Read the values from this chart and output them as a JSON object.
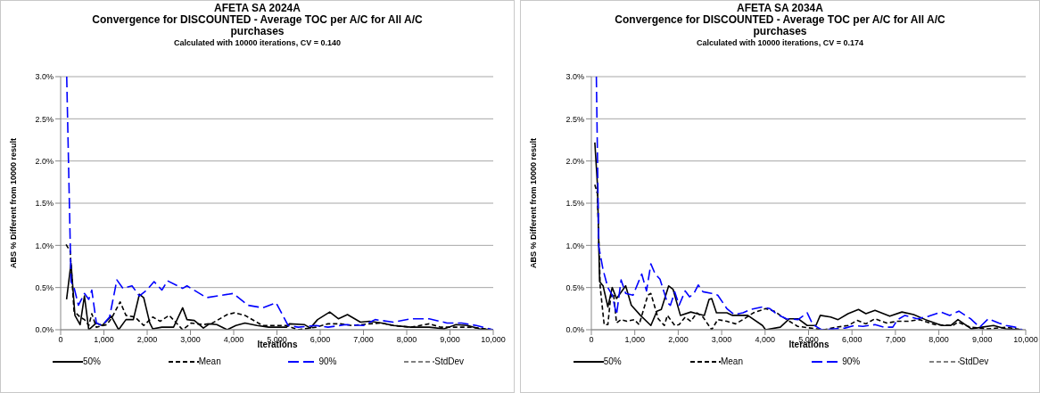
{
  "chart_data": [
    {
      "type": "line",
      "title": "AFETA SA 2024A\nConvergence for DISCOUNTED - Average TOC per A/C for All A/C\npurchases",
      "subtitle": "Calculated with 10000 iterations, CV = 0.140",
      "xlabel": "Iterations",
      "ylabel": "ABS % Different from 10000 result",
      "xlim": [
        0,
        10000
      ],
      "ylim": [
        0,
        3
      ],
      "xticks": [
        0,
        {
          "value": 1000,
          "label": "1,000"
        },
        {
          "value": 2000,
          "label": "2,000"
        },
        {
          "value": 3000,
          "label": "3,000"
        },
        {
          "value": 4000,
          "label": "4,000"
        },
        {
          "value": 5000,
          "label": "5,000"
        },
        {
          "value": 6000,
          "label": "6,000"
        },
        {
          "value": 7000,
          "label": "7,000"
        },
        {
          "value": 8000,
          "label": "8,000"
        },
        {
          "value": 9000,
          "label": "9,000"
        },
        {
          "value": 10000,
          "label": "10,000"
        }
      ],
      "yticks": [
        {
          "value": 0,
          "label": "0.0%"
        },
        {
          "value": 0.5,
          "label": "0.5%"
        },
        {
          "value": 1,
          "label": "1.0%"
        },
        {
          "value": 1.5,
          "label": "1.5%"
        },
        {
          "value": 2,
          "label": "2.0%"
        },
        {
          "value": 2.5,
          "label": "2.5%"
        },
        {
          "value": 3,
          "label": "3.0%"
        }
      ],
      "grid": "y",
      "legend": "bottom",
      "marker": "none",
      "series": [
        {
          "name": "50%",
          "color": "#000000",
          "line_style": "solid",
          "x": [
            137,
            240,
            330,
            450,
            550,
            650,
            825,
            960,
            1170,
            1340,
            1510,
            1680,
            1820,
            1920,
            2060,
            2130,
            2340,
            2610,
            2820,
            2920,
            3090,
            3300,
            3440,
            3610,
            3850,
            4050,
            4260,
            4540,
            4810,
            5220,
            5290,
            5640,
            5770,
            5940,
            6220,
            6420,
            6630,
            6930,
            7140,
            7420,
            7690,
            8100,
            8520,
            8860,
            9140,
            9410,
            9680,
            10000
          ],
          "values": [
            0.36,
            0.79,
            0.17,
            0.06,
            0.4,
            0,
            0.08,
            0.05,
            0.16,
            0,
            0.12,
            0.12,
            0.42,
            0.38,
            0.08,
            0.01,
            0.03,
            0.03,
            0.26,
            0.12,
            0.11,
            0.02,
            0.07,
            0.06,
            0,
            0.05,
            0.08,
            0.05,
            0.03,
            0.03,
            0.07,
            0.06,
            0.02,
            0.12,
            0.21,
            0.13,
            0.18,
            0.09,
            0.1,
            0.08,
            0.05,
            0.03,
            0.03,
            0.01,
            0.06,
            0.05,
            0.01,
            0
          ]
        },
        {
          "name": "Mean",
          "color": "#000000",
          "line_style": "dashed",
          "x": [
            125,
            220,
            310,
            450,
            550,
            650,
            720,
            825,
            1065,
            1170,
            1375,
            1510,
            1720,
            1920,
            2130,
            2300,
            2510,
            2820,
            3020,
            3300,
            3510,
            3850,
            4020,
            4260,
            4670,
            5010,
            5220,
            5490,
            5900,
            6180,
            6460,
            6730,
            7140,
            7420,
            7690,
            8100,
            8520,
            8790,
            9070,
            9480,
            10000
          ],
          "values": [
            1.01,
            0.93,
            0.22,
            0.15,
            0.12,
            0.05,
            0.19,
            0.03,
            0.06,
            0.13,
            0.33,
            0.17,
            0.15,
            0.05,
            0.15,
            0.1,
            0.17,
            0,
            0.08,
            0.06,
            0.08,
            0.18,
            0.2,
            0.17,
            0.05,
            0.05,
            0.05,
            0,
            0.03,
            0.07,
            0.07,
            0.05,
            0.07,
            0.08,
            0.05,
            0.03,
            0.07,
            0.03,
            0.03,
            0.03,
            0
          ]
        },
        {
          "name": "90%",
          "color": "#0000ff",
          "line_style": "dashed",
          "x": [
            140,
            240,
            310,
            410,
            550,
            650,
            720,
            825,
            960,
            1130,
            1300,
            1440,
            1650,
            1820,
            1990,
            2160,
            2340,
            2470,
            2820,
            2920,
            3370,
            3990,
            4330,
            4670,
            4980,
            5260,
            5490,
            5900,
            6180,
            6590,
            7000,
            7270,
            7690,
            8100,
            8520,
            8930,
            9270,
            9610,
            10000
          ],
          "values": [
            3,
            0.57,
            0.5,
            0.29,
            0.43,
            0.36,
            0.47,
            0.08,
            0.05,
            0.15,
            0.59,
            0.49,
            0.52,
            0.4,
            0.47,
            0.57,
            0.47,
            0.58,
            0.49,
            0.52,
            0.38,
            0.43,
            0.29,
            0.26,
            0.32,
            0.05,
            0.03,
            0.05,
            0.03,
            0.06,
            0.05,
            0.12,
            0.09,
            0.13,
            0.13,
            0.08,
            0.08,
            0.05,
            0
          ]
        },
        {
          "name": "StdDev",
          "color": "#808080",
          "line_style": "dashed"
        }
      ]
    },
    {
      "type": "line",
      "title": "AFETA SA 2034A\nConvergence for DISCOUNTED - Average TOC per A/C for All A/C\npurchases",
      "subtitle": "Calculated with 10000 iterations, CV = 0.174",
      "xlabel": "Iterations",
      "ylabel": "ABS % Different from 10000 result",
      "xlim": [
        0,
        10000
      ],
      "ylim": [
        0,
        3
      ],
      "xticks": [
        0,
        {
          "value": 1000,
          "label": "1,000"
        },
        {
          "value": 2000,
          "label": "2,000"
        },
        {
          "value": 3000,
          "label": "3,000"
        },
        {
          "value": 4000,
          "label": "4,000"
        },
        {
          "value": 5000,
          "label": "5,000"
        },
        {
          "value": 6000,
          "label": "6,000"
        },
        {
          "value": 7000,
          "label": "7,000"
        },
        {
          "value": 8000,
          "label": "8,000"
        },
        {
          "value": 9000,
          "label": "9,000"
        },
        {
          "value": 10000,
          "label": "10,000"
        }
      ],
      "yticks": [
        {
          "value": 0,
          "label": "0.0%"
        },
        {
          "value": 0.5,
          "label": "0.5%"
        },
        {
          "value": 1,
          "label": "1.0%"
        },
        {
          "value": 1.5,
          "label": "1.5%"
        },
        {
          "value": 2,
          "label": "2.0%"
        },
        {
          "value": 2.5,
          "label": "2.5%"
        },
        {
          "value": 3,
          "label": "3.0%"
        }
      ],
      "grid": "y",
      "legend": "bottom",
      "marker": "none",
      "series": [
        {
          "name": "50%",
          "color": "#000000",
          "line_style": "solid",
          "x": [
            80,
            140,
            190,
            270,
            380,
            480,
            580,
            790,
            920,
            1130,
            1370,
            1510,
            1610,
            1780,
            1880,
            2050,
            2290,
            2430,
            2600,
            2710,
            2770,
            2880,
            3120,
            3250,
            3600,
            3940,
            4010,
            4350,
            4560,
            4760,
            4970,
            5170,
            5270,
            5510,
            5680,
            5910,
            6150,
            6320,
            6530,
            6870,
            7150,
            7420,
            7690,
            8070,
            8270,
            8440,
            8750,
            8990,
            9260,
            9540,
            9920
          ],
          "values": [
            2.22,
            1.72,
            0.57,
            0.52,
            0.27,
            0.5,
            0.37,
            0.52,
            0.29,
            0.17,
            0.05,
            0.22,
            0.24,
            0.52,
            0.48,
            0.17,
            0.21,
            0.19,
            0.17,
            0.36,
            0.37,
            0.2,
            0.2,
            0.17,
            0.17,
            0.05,
            0,
            0.03,
            0.13,
            0.13,
            0.05,
            0.05,
            0.17,
            0.15,
            0.12,
            0.19,
            0.24,
            0.19,
            0.23,
            0.16,
            0.21,
            0.18,
            0.12,
            0.05,
            0.05,
            0.12,
            0.01,
            0.03,
            0.05,
            0.01,
            0
          ]
        },
        {
          "name": "Mean",
          "color": "#000000",
          "line_style": "dashed",
          "x": [
            80,
            140,
            205,
            295,
            380,
            445,
            510,
            580,
            685,
            820,
            990,
            1100,
            1300,
            1370,
            1540,
            1680,
            1750,
            1920,
            2020,
            2160,
            2290,
            2430,
            2570,
            2770,
            2910,
            3120,
            3320,
            3490,
            3730,
            4010,
            4210,
            4350,
            4560,
            4750,
            5190,
            5360,
            5640,
            5910,
            6120,
            6320,
            6530,
            6800,
            7050,
            7290,
            7560,
            7910,
            8320,
            8440,
            8720,
            9130,
            9540,
            9920
          ],
          "values": [
            1.72,
            1.61,
            0.5,
            0.06,
            0.06,
            0.39,
            0.43,
            0.08,
            0.12,
            0.1,
            0.12,
            0.06,
            0.41,
            0.43,
            0.13,
            0.05,
            0.17,
            0.05,
            0.06,
            0.15,
            0.1,
            0.2,
            0.15,
            0,
            0.12,
            0.1,
            0.07,
            0.12,
            0.2,
            0.25,
            0.22,
            0.17,
            0.1,
            0.04,
            0.01,
            0,
            0.03,
            0.05,
            0.11,
            0.07,
            0.13,
            0.08,
            0.1,
            0.1,
            0.12,
            0.06,
            0.05,
            0.09,
            0.03,
            0.01,
            0.03,
            0
          ]
        },
        {
          "name": "90%",
          "color": "#0000ff",
          "line_style": "dashed",
          "x": [
            115,
            170,
            270,
            380,
            480,
            580,
            685,
            790,
            960,
            1160,
            1270,
            1370,
            1470,
            1580,
            1750,
            1820,
            1920,
            2020,
            2160,
            2260,
            2360,
            2460,
            2570,
            2770,
            2910,
            3120,
            3290,
            3490,
            3660,
            3940,
            4110,
            4280,
            4490,
            4760,
            4970,
            5100,
            5300,
            5600,
            5840,
            6050,
            6250,
            6530,
            6730,
            6940,
            7050,
            7220,
            7500,
            7770,
            8050,
            8250,
            8460,
            8730,
            8940,
            9140,
            9380,
            9550,
            9760,
            9920
          ],
          "values": [
            3,
            0.99,
            0.71,
            0.5,
            0.41,
            0.18,
            0.59,
            0.43,
            0.41,
            0.66,
            0.46,
            0.78,
            0.66,
            0.6,
            0.32,
            0.29,
            0.45,
            0.29,
            0.46,
            0.39,
            0.43,
            0.53,
            0.45,
            0.43,
            0.41,
            0.25,
            0.18,
            0.2,
            0.24,
            0.27,
            0.25,
            0.18,
            0.13,
            0.12,
            0.2,
            0.06,
            0,
            0.01,
            0.02,
            0.05,
            0.04,
            0.06,
            0.03,
            0.03,
            0.12,
            0.17,
            0.13,
            0.16,
            0.21,
            0.17,
            0.22,
            0.13,
            0.03,
            0.13,
            0.08,
            0.05,
            0.03,
            0
          ]
        },
        {
          "name": "StdDev",
          "color": "#808080",
          "line_style": "dashed"
        }
      ]
    }
  ]
}
